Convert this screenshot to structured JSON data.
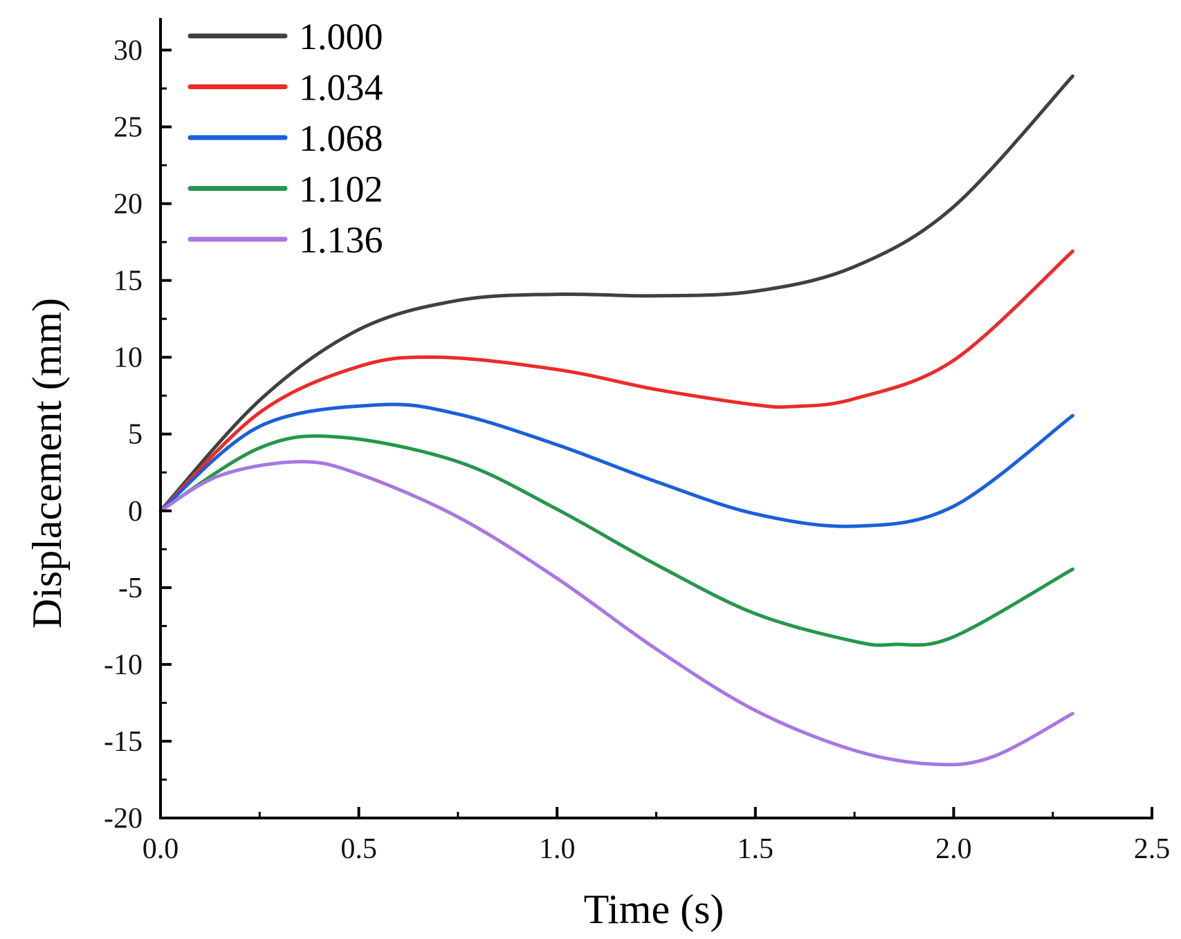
{
  "chart_data": {
    "type": "line",
    "title": "",
    "xlabel": "Time (s)",
    "ylabel": "Displacement (mm)",
    "xlim": [
      0,
      2.5
    ],
    "ylim": [
      -20,
      32
    ],
    "xticks": [
      0.0,
      0.5,
      1.0,
      1.5,
      2.0,
      2.5
    ],
    "xtick_labels": [
      "0.0",
      "0.5",
      "1.0",
      "1.5",
      "2.0",
      "2.5"
    ],
    "yticks": [
      -20,
      -15,
      -10,
      -5,
      0,
      5,
      10,
      15,
      20,
      25,
      30
    ],
    "ytick_labels": [
      "-20",
      "-15",
      "-10",
      "-5",
      "0",
      "5",
      "10",
      "15",
      "20",
      "25",
      "30"
    ],
    "grid": false,
    "legend_position": "top-left",
    "series": [
      {
        "name": "1.000",
        "color": "#404040",
        "x": [
          0,
          0.25,
          0.5,
          0.75,
          1.0,
          1.25,
          1.5,
          1.75,
          2.0,
          2.3
        ],
        "y": [
          0,
          7.2,
          11.8,
          13.7,
          14.1,
          14.0,
          14.3,
          15.9,
          19.8,
          28.3
        ]
      },
      {
        "name": "1.034",
        "color": "#ed2a2a",
        "x": [
          0,
          0.25,
          0.5,
          0.7,
          1.0,
          1.25,
          1.5,
          1.6,
          1.75,
          2.0,
          2.3
        ],
        "y": [
          0,
          6.4,
          9.4,
          10.0,
          9.2,
          7.9,
          6.9,
          6.8,
          7.3,
          9.8,
          16.9
        ]
      },
      {
        "name": "1.068",
        "color": "#1a5fdc",
        "x": [
          0,
          0.25,
          0.55,
          0.75,
          1.0,
          1.25,
          1.5,
          1.75,
          2.0,
          2.3
        ],
        "y": [
          0,
          5.5,
          6.9,
          6.3,
          4.3,
          1.9,
          -0.2,
          -1.0,
          0.3,
          6.2
        ]
      },
      {
        "name": "1.102",
        "color": "#24974c",
        "x": [
          0,
          0.25,
          0.45,
          0.75,
          1.0,
          1.25,
          1.5,
          1.75,
          1.85,
          2.0,
          2.3
        ],
        "y": [
          0,
          4.1,
          4.8,
          3.2,
          0.1,
          -3.5,
          -6.7,
          -8.5,
          -8.7,
          -8.2,
          -3.8
        ]
      },
      {
        "name": "1.136",
        "color": "#a877e2",
        "x": [
          0,
          0.15,
          0.35,
          0.5,
          0.75,
          1.0,
          1.25,
          1.5,
          1.75,
          1.95,
          2.1,
          2.3
        ],
        "y": [
          0,
          2.3,
          3.2,
          2.4,
          -0.4,
          -4.4,
          -9.0,
          -13.0,
          -15.6,
          -16.5,
          -16.0,
          -13.2
        ]
      }
    ]
  }
}
